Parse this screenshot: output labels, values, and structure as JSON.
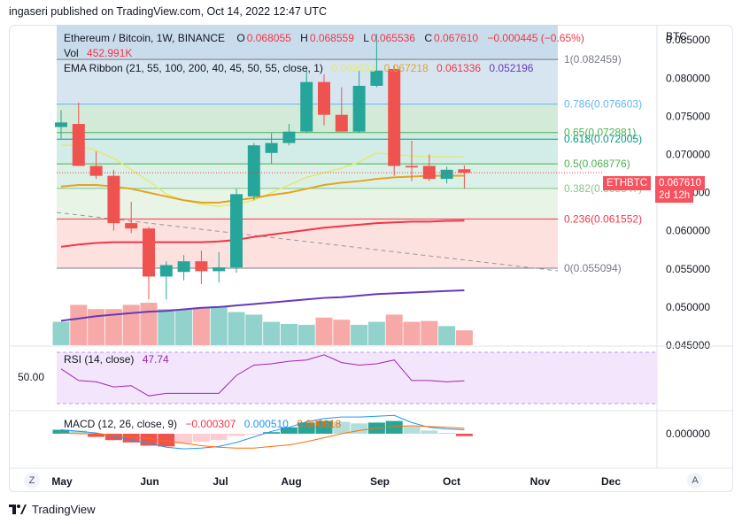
{
  "header": {
    "text": "ingaseri published on TradingView.com, Oct 14, 2022 12:47 UTC"
  },
  "legend": {
    "symbol": "Ethereum / Bitcoin, 1W, BINANCE",
    "o_label": "O",
    "o": "0.068055",
    "h_label": "H",
    "h": "0.068559",
    "l_label": "L",
    "l": "0.065536",
    "c_label": "C",
    "c": "0.067610",
    "change": "−0.000445 (−0.65%)",
    "vol_label": "Vol",
    "vol": "452.991K",
    "ema_label": "EMA Ribbon (21, 55, 100, 200, 40, 45, 50, 55, close, 1)",
    "ema_values": [
      "0.069633",
      "0.067218",
      "0.061336",
      "0.052196"
    ],
    "ema_colors": [
      "#e4e876",
      "#e5a321",
      "#f23645",
      "#673ab7"
    ]
  },
  "price_axis": {
    "currency": "BTC",
    "ticks": [
      "0.085000",
      "0.080000",
      "0.075000",
      "0.070000",
      "0.065000",
      "0.060000",
      "0.055000",
      "0.050000",
      "0.045000"
    ]
  },
  "last_price": {
    "symbol": "ETHBTC",
    "price": "0.067610",
    "countdown": "2d 12h"
  },
  "fib": [
    {
      "label": "1(0.082459)",
      "level": 0.082459,
      "color": "#787b86"
    },
    {
      "label": "0.786(0.076603)",
      "level": 0.076603,
      "color": "#64b5f6"
    },
    {
      "label": "0.65(0.072881)",
      "level": 0.072881,
      "color": "#4caf50"
    },
    {
      "label": "0.618(0.072005)",
      "level": 0.072005,
      "color": "#089981"
    },
    {
      "label": "0.5(0.068776)",
      "level": 0.068776,
      "color": "#4caf50"
    },
    {
      "label": "0.382(0.065547)",
      "level": 0.065547,
      "color": "#81c784"
    },
    {
      "label": "0.236(0.061552)",
      "level": 0.061552,
      "color": "#f23645"
    },
    {
      "label": "0(0.055094)",
      "level": 0.055094,
      "color": "#787b86"
    }
  ],
  "rsi": {
    "label": "RSI (14, close)",
    "value": "47.74",
    "level_label": "50.00"
  },
  "macd": {
    "label": "MACD (12, 26, close, 9)",
    "values": [
      "−0.000307",
      "0.000510",
      "0.000818"
    ],
    "axis_label": "0.000000"
  },
  "time_axis": [
    "May",
    "Jun",
    "Jul",
    "Aug",
    "Sep",
    "Oct",
    "Nov",
    "Dec"
  ],
  "buttons": {
    "zoom": "Z",
    "auto": "A"
  },
  "footer": {
    "brand": "TradingView"
  },
  "chart_data": {
    "type": "candlestick",
    "timeframe": "1W",
    "ylim": [
      0.045,
      0.087
    ],
    "candles": [
      {
        "o": 0.0736,
        "h": 0.0758,
        "l": 0.0721,
        "c": 0.0742
      },
      {
        "o": 0.074,
        "h": 0.0768,
        "l": 0.0688,
        "c": 0.0685
      },
      {
        "o": 0.0685,
        "h": 0.0704,
        "l": 0.0668,
        "c": 0.0672
      },
      {
        "o": 0.0672,
        "h": 0.068,
        "l": 0.06,
        "c": 0.061
      },
      {
        "o": 0.061,
        "h": 0.0638,
        "l": 0.0597,
        "c": 0.0603
      },
      {
        "o": 0.0603,
        "h": 0.0605,
        "l": 0.051,
        "c": 0.054
      },
      {
        "o": 0.054,
        "h": 0.056,
        "l": 0.051,
        "c": 0.0555
      },
      {
        "o": 0.0546,
        "h": 0.0568,
        "l": 0.0535,
        "c": 0.056
      },
      {
        "o": 0.056,
        "h": 0.0574,
        "l": 0.053,
        "c": 0.0547
      },
      {
        "o": 0.0547,
        "h": 0.0572,
        "l": 0.0532,
        "c": 0.0552
      },
      {
        "o": 0.0552,
        "h": 0.0655,
        "l": 0.0545,
        "c": 0.0648
      },
      {
        "o": 0.0645,
        "h": 0.0715,
        "l": 0.064,
        "c": 0.0712
      },
      {
        "o": 0.0702,
        "h": 0.0728,
        "l": 0.0688,
        "c": 0.0715
      },
      {
        "o": 0.0715,
        "h": 0.074,
        "l": 0.0712,
        "c": 0.073
      },
      {
        "o": 0.073,
        "h": 0.0815,
        "l": 0.0728,
        "c": 0.0795
      },
      {
        "o": 0.0795,
        "h": 0.0805,
        "l": 0.0738,
        "c": 0.0752
      },
      {
        "o": 0.0752,
        "h": 0.0788,
        "l": 0.073,
        "c": 0.073
      },
      {
        "o": 0.073,
        "h": 0.081,
        "l": 0.0728,
        "c": 0.079
      },
      {
        "o": 0.079,
        "h": 0.0858,
        "l": 0.0788,
        "c": 0.081
      },
      {
        "o": 0.0812,
        "h": 0.0817,
        "l": 0.0672,
        "c": 0.0685
      },
      {
        "o": 0.0685,
        "h": 0.0718,
        "l": 0.0665,
        "c": 0.0683
      },
      {
        "o": 0.0685,
        "h": 0.07,
        "l": 0.0665,
        "c": 0.0668
      },
      {
        "o": 0.0668,
        "h": 0.0684,
        "l": 0.0662,
        "c": 0.068
      },
      {
        "o": 0.068055,
        "h": 0.068559,
        "l": 0.065536,
        "c": 0.06761
      }
    ],
    "volume_relative": [
      0.55,
      0.95,
      0.85,
      0.85,
      0.95,
      1.0,
      0.85,
      0.85,
      0.88,
      0.92,
      0.78,
      0.72,
      0.55,
      0.5,
      0.48,
      0.65,
      0.6,
      0.48,
      0.55,
      0.72,
      0.55,
      0.57,
      0.45,
      0.35
    ],
    "ema_ribbon": [
      {
        "name": "21",
        "values": [
          0.0712,
          0.0712,
          0.0705,
          0.0695,
          0.068,
          0.0665,
          0.0648,
          0.064,
          0.0635,
          0.0632,
          0.0635,
          0.064,
          0.065,
          0.066,
          0.067,
          0.0676,
          0.0682,
          0.069,
          0.0702,
          0.07,
          0.0698,
          0.0697,
          0.0697,
          0.069633
        ]
      },
      {
        "name": "55",
        "values": [
          0.0658,
          0.066,
          0.066,
          0.0658,
          0.0655,
          0.065,
          0.0645,
          0.064,
          0.0637,
          0.0637,
          0.064,
          0.0643,
          0.0647,
          0.065,
          0.0655,
          0.066,
          0.0663,
          0.0665,
          0.0668,
          0.067,
          0.0671,
          0.0672,
          0.0672,
          0.067218
        ]
      },
      {
        "name": "100",
        "values": [
          0.0579,
          0.0582,
          0.0584,
          0.0585,
          0.0585,
          0.0585,
          0.0585,
          0.0585,
          0.0585,
          0.0586,
          0.0588,
          0.0592,
          0.0595,
          0.0598,
          0.0601,
          0.0604,
          0.0606,
          0.0608,
          0.061,
          0.0611,
          0.0612,
          0.0612,
          0.0613,
          0.061336
        ]
      },
      {
        "name": "200",
        "values": [
          0.0482,
          0.0485,
          0.0488,
          0.049,
          0.0492,
          0.0494,
          0.0495,
          0.0497,
          0.0499,
          0.05,
          0.0502,
          0.0504,
          0.0506,
          0.0508,
          0.051,
          0.0512,
          0.0513,
          0.0515,
          0.0517,
          0.0518,
          0.0519,
          0.052,
          0.0521,
          0.052196
        ]
      }
    ],
    "rsi_values": [
      57,
      48,
      47,
      43,
      44,
      36,
      38,
      38,
      38,
      38,
      52,
      60,
      61,
      63,
      64,
      68,
      62,
      60,
      61,
      64,
      48,
      48,
      47,
      47.74
    ],
    "macd_hist": [
      0.0005,
      0.0004,
      -0.0004,
      -0.0008,
      -0.0011,
      -0.0015,
      -0.0016,
      -0.0012,
      -0.001,
      -0.0008,
      -0.0003,
      -0.0001,
      0.0002,
      0.0008,
      0.0014,
      0.0016,
      0.0015,
      0.0013,
      0.0014,
      0.0016,
      0.0009,
      0.0004,
      0.0001,
      -0.000307
    ]
  }
}
